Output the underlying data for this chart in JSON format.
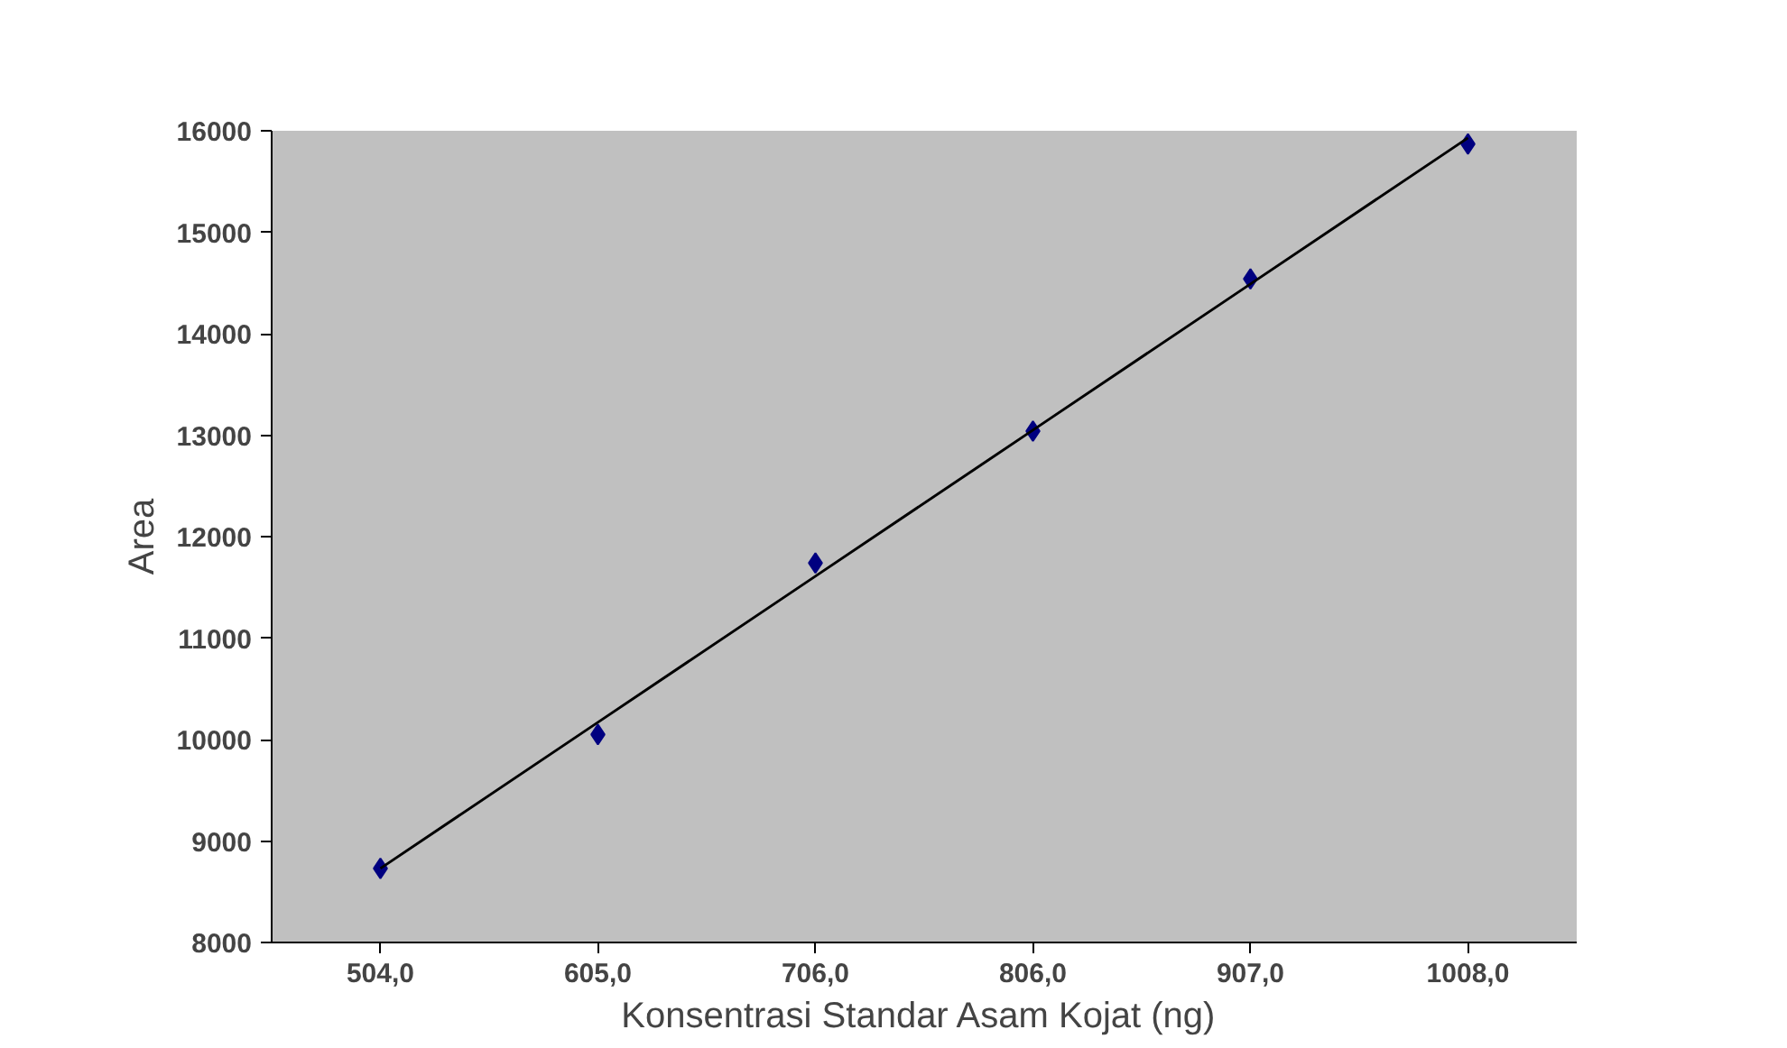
{
  "chart_data": {
    "type": "scatter",
    "xlabel": "Konsentrasi Standar Asam Kojat  (ng)",
    "ylabel": "Area",
    "categories": [
      "504,0",
      "605,0",
      "706,0",
      "806,0",
      "907,0",
      "1008,0"
    ],
    "series": [
      {
        "color": "#000080",
        "marker": "diamond",
        "values": [
          8730,
          10050,
          11740,
          13040,
          14540,
          15870
        ]
      },
      {
        "type": "line",
        "color": "#000000",
        "marker": "none",
        "line_style": "solid",
        "values": [
          8730,
          10170,
          11610,
          13050,
          14490,
          15930
        ]
      }
    ],
    "ylim": [
      8000,
      16000
    ],
    "yticks": [
      8000,
      9000,
      10000,
      11000,
      12000,
      13000,
      14000,
      15000,
      16000
    ],
    "grid": false
  }
}
